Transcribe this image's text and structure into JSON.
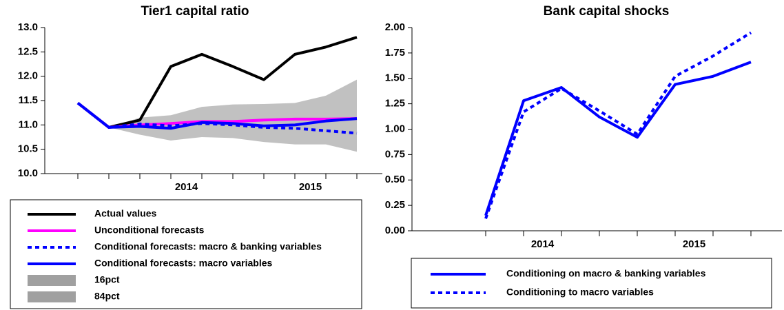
{
  "chart_data": [
    {
      "type": "line",
      "title": "Tier1 capital ratio",
      "categories": [
        null,
        null,
        null,
        null,
        null,
        null,
        null,
        null,
        null,
        null
      ],
      "x_groups": [
        {
          "label": "2014",
          "first": 2,
          "last": 5
        },
        {
          "label": "2015",
          "first": 6,
          "last": 9
        }
      ],
      "ylim": [
        10,
        13
      ],
      "yticks": [
        {
          "value": 10,
          "label": "10.0"
        },
        10.5,
        {
          "value": 11,
          "label": "11.0"
        },
        11.5,
        {
          "value": 12,
          "label": "12.0"
        },
        12.5,
        {
          "value": 13,
          "label": "13.0"
        }
      ],
      "legend": "below",
      "series": [
        {
          "name": "Actual values",
          "color": "#000000",
          "style": "solid",
          "values": [
            11.45,
            10.95,
            11.1,
            12.2,
            12.45,
            12.2,
            11.93,
            12.45,
            12.6,
            12.8
          ]
        },
        {
          "name": "Unconditional forecasts",
          "color": "#ff00ff",
          "style": "solid",
          "values": [
            11.45,
            10.95,
            11.0,
            11.03,
            11.07,
            11.07,
            11.1,
            11.12,
            11.12,
            11.13
          ]
        },
        {
          "name": "Conditional forecasts: macro & banking variables",
          "color": "#0000ff",
          "style": "dotted",
          "values": [
            11.45,
            10.95,
            11.02,
            10.98,
            11.03,
            11.0,
            10.95,
            10.93,
            10.88,
            10.83
          ]
        },
        {
          "name": "Conditional forecasts: macro variables",
          "color": "#0000ff",
          "style": "solid",
          "values": [
            11.45,
            10.95,
            10.97,
            10.93,
            11.05,
            11.03,
            10.98,
            11.0,
            11.08,
            11.13
          ]
        },
        {
          "name": "16pct",
          "color": "#a0a0a0",
          "style": "band-lower",
          "values": [
            null,
            10.95,
            10.8,
            10.68,
            10.75,
            10.73,
            10.65,
            10.6,
            10.6,
            10.45
          ]
        },
        {
          "name": "84pct",
          "color": "#a0a0a0",
          "style": "band-upper",
          "values": [
            null,
            10.95,
            11.15,
            11.2,
            11.37,
            11.42,
            11.43,
            11.45,
            11.6,
            11.93
          ]
        }
      ]
    },
    {
      "type": "line",
      "title": "Bank capital shocks",
      "categories": [
        null,
        null,
        null,
        null,
        null,
        null,
        null,
        null
      ],
      "x_groups": [
        {
          "label": "2014",
          "first": 0,
          "last": 3
        },
        {
          "label": "2015",
          "first": 4,
          "last": 7
        }
      ],
      "ylim": [
        0,
        2
      ],
      "yticks": [
        {
          "value": 0,
          "label": "0.00"
        },
        0.25,
        {
          "value": 0.5,
          "label": "0.50"
        },
        0.75,
        {
          "value": 1,
          "label": "1.00"
        },
        1.25,
        {
          "value": 1.5,
          "label": "1.50"
        },
        1.75,
        {
          "value": 2,
          "label": "2.00"
        }
      ],
      "legend": "below",
      "series": [
        {
          "name": "Conditioning on macro & banking variables",
          "color": "#0000ff",
          "style": "solid",
          "values": [
            0.15,
            1.28,
            1.41,
            1.12,
            0.92,
            1.44,
            1.52,
            1.66
          ]
        },
        {
          "name": "Conditioning to macro variables",
          "color": "#0000ff",
          "style": "dotted",
          "values": [
            0.12,
            1.17,
            1.4,
            1.18,
            0.95,
            1.52,
            1.72,
            1.95
          ]
        }
      ]
    }
  ]
}
